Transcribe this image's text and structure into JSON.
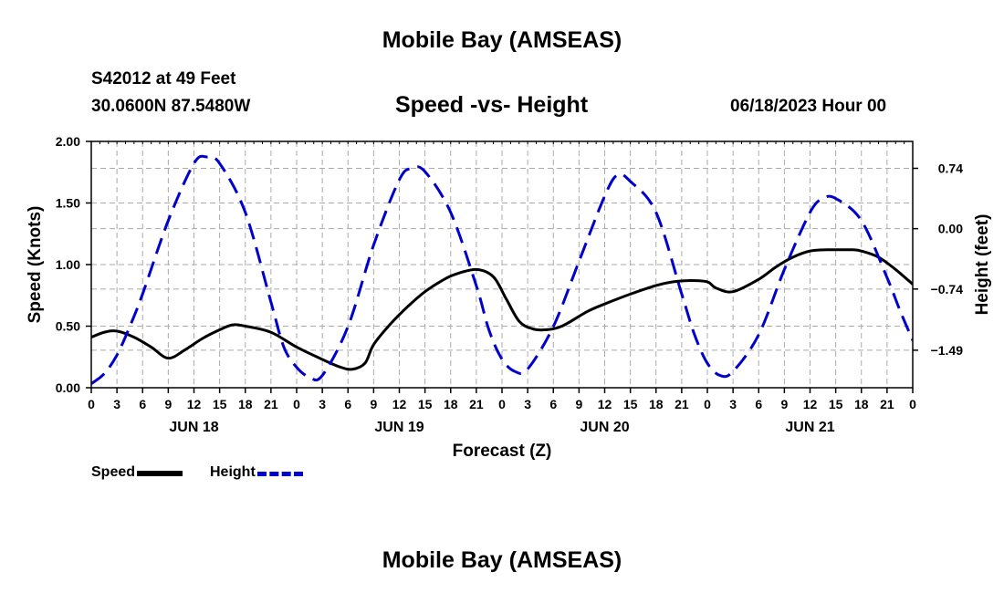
{
  "header": {
    "title": "Mobile Bay (AMSEAS)",
    "station": "S42012 at 49 Feet",
    "coordinates": "30.0600N  87.5480W",
    "subtitle": "Speed -vs- Height",
    "timestamp": "06/18/2023 Hour 00"
  },
  "footer": {
    "title": "Mobile Bay (AMSEAS)"
  },
  "legend": {
    "speed_label": "Speed",
    "height_label": "Height"
  },
  "colors": {
    "speed": "#000000",
    "height": "#0000cc",
    "grid": "#aaaaaa"
  },
  "chart_data": {
    "type": "line",
    "title": "Speed -vs- Height",
    "xlabel": "Forecast (Z)",
    "ylabel": "Speed (Knots)",
    "y2label": "Height (feet)",
    "xlim": [
      0,
      96
    ],
    "ylim": [
      0,
      2
    ],
    "y2lim": [
      -1.95,
      1.07
    ],
    "x_ticks": [
      0,
      3,
      6,
      9,
      12,
      15,
      18,
      21,
      24,
      27,
      30,
      33,
      36,
      39,
      42,
      45,
      48,
      51,
      54,
      57,
      60,
      63,
      66,
      69,
      72,
      75,
      78,
      81,
      84,
      87,
      90,
      93,
      96
    ],
    "x_tick_labels": [
      "0",
      "3",
      "6",
      "9",
      "12",
      "15",
      "18",
      "21",
      "0",
      "3",
      "6",
      "9",
      "12",
      "15",
      "18",
      "21",
      "0",
      "3",
      "6",
      "9",
      "12",
      "15",
      "18",
      "21",
      "0",
      "3",
      "6",
      "9",
      "12",
      "15",
      "18",
      "21",
      "0"
    ],
    "day_labels": [
      {
        "x": 12,
        "label": "JUN 18"
      },
      {
        "x": 36,
        "label": "JUN 19"
      },
      {
        "x": 60,
        "label": "JUN 20"
      },
      {
        "x": 84,
        "label": "JUN 21"
      }
    ],
    "y_ticks": [
      0,
      0.5,
      1,
      1.5,
      2
    ],
    "y_tick_labels": [
      "0.00",
      "0.50",
      "1.00",
      "1.50",
      "2.00"
    ],
    "y2_ticks": [
      0.74,
      0,
      -0.74,
      -1.49
    ],
    "y2_tick_labels": [
      "0.74",
      "0.00",
      "−0.74",
      "−1.49"
    ],
    "grid": true,
    "series": [
      {
        "name": "Speed",
        "axis": "left",
        "x": [
          0,
          1.5,
          3,
          5,
          7,
          9,
          11,
          13,
          15,
          16.5,
          18,
          21,
          24,
          27,
          29,
          30.5,
          32,
          33,
          35,
          37,
          39,
          41,
          42.5,
          45,
          47,
          48.5,
          50,
          51.5,
          53,
          55,
          58,
          60,
          63,
          66,
          68,
          70,
          72,
          73,
          75,
          78,
          80,
          82,
          84,
          86,
          88,
          89,
          90,
          92,
          94,
          96
        ],
        "values": [
          0.41,
          0.45,
          0.46,
          0.41,
          0.33,
          0.24,
          0.31,
          0.4,
          0.47,
          0.51,
          0.5,
          0.45,
          0.33,
          0.23,
          0.17,
          0.15,
          0.2,
          0.35,
          0.52,
          0.66,
          0.78,
          0.87,
          0.92,
          0.96,
          0.9,
          0.72,
          0.54,
          0.48,
          0.47,
          0.5,
          0.62,
          0.68,
          0.76,
          0.83,
          0.86,
          0.87,
          0.86,
          0.81,
          0.78,
          0.88,
          0.98,
          1.06,
          1.11,
          1.12,
          1.12,
          1.12,
          1.11,
          1.06,
          0.96,
          0.84
        ]
      },
      {
        "name": "Height",
        "axis": "right",
        "x": [
          0,
          1.5,
          3,
          4.5,
          6,
          9,
          12,
          13.5,
          15,
          18,
          21,
          22.5,
          24,
          25.5,
          27,
          30,
          33,
          36,
          37.5,
          39,
          42,
          45,
          46.5,
          48,
          49.5,
          51,
          54,
          57,
          60,
          61.5,
          63,
          66,
          69,
          70.5,
          72,
          73.5,
          75,
          78,
          81,
          84,
          85.5,
          87,
          90,
          93,
          94.5,
          96
        ],
        "values": [
          -1.9,
          -1.78,
          -1.55,
          -1.2,
          -0.8,
          0.1,
          0.8,
          0.88,
          0.8,
          0.2,
          -0.9,
          -1.45,
          -1.7,
          -1.82,
          -1.8,
          -1.2,
          -0.2,
          0.6,
          0.74,
          0.7,
          0.2,
          -0.7,
          -1.25,
          -1.6,
          -1.75,
          -1.72,
          -1.2,
          -0.4,
          0.4,
          0.66,
          0.58,
          0.2,
          -0.8,
          -1.3,
          -1.65,
          -1.8,
          -1.75,
          -1.3,
          -0.5,
          0.2,
          0.37,
          0.37,
          0.1,
          -0.6,
          -1.0,
          -1.37
        ]
      }
    ]
  }
}
